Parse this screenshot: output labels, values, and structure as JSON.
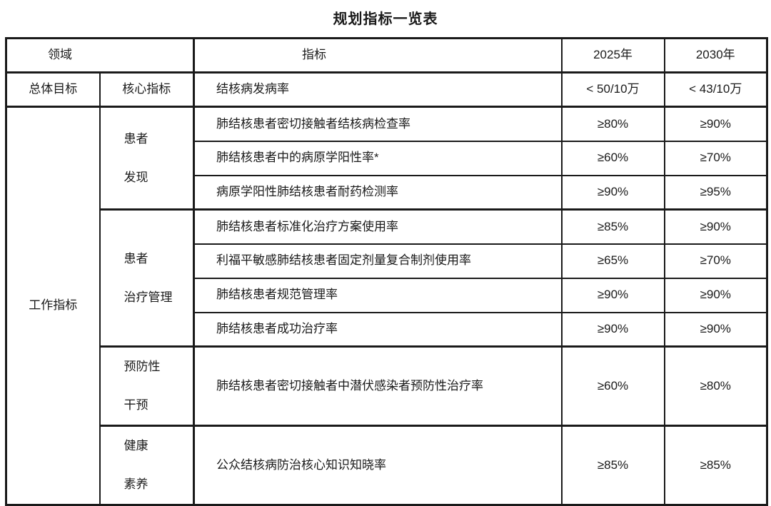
{
  "page": {
    "title": "规划指标一览表"
  },
  "table": {
    "header": {
      "domain": "领域",
      "indicator": "指标",
      "col2025": "2025年",
      "col2030": "2030年"
    },
    "core": {
      "domain": "总体目标",
      "category": "核心指标",
      "indicator": "结核病发病率",
      "v2025": "< 50/10万",
      "v2030": "< 43/10万"
    },
    "work": {
      "domain": "工作指标",
      "discovery": {
        "cat1": "患者",
        "cat2": "发现",
        "r1": {
          "indicator": "肺结核患者密切接触者结核病检查率",
          "v2025": "≥80%",
          "v2030": "≥90%"
        },
        "r2": {
          "indicator": "肺结核患者中的病原学阳性率*",
          "v2025": "≥60%",
          "v2030": "≥70%"
        },
        "r3": {
          "indicator": "病原学阳性肺结核患者耐药检测率",
          "v2025": "≥90%",
          "v2030": "≥95%"
        }
      },
      "treatment": {
        "cat1": "患者",
        "cat2": "治疗管理",
        "r1": {
          "indicator": "肺结核患者标准化治疗方案使用率",
          "v2025": "≥85%",
          "v2030": "≥90%"
        },
        "r2": {
          "indicator": "利福平敏感肺结核患者固定剂量复合制剂使用率",
          "v2025": "≥65%",
          "v2030": "≥70%"
        },
        "r3": {
          "indicator": "肺结核患者规范管理率",
          "v2025": "≥90%",
          "v2030": "≥90%"
        },
        "r4": {
          "indicator": "肺结核患者成功治疗率",
          "v2025": "≥90%",
          "v2030": "≥90%"
        }
      },
      "prevention": {
        "cat1": "预防性",
        "cat2": "干预",
        "indicator": "肺结核患者密切接触者中潜伏感染者预防性治疗率",
        "v2025": "≥60%",
        "v2030": "≥80%"
      },
      "literacy": {
        "cat1": "健康",
        "cat2": "素养",
        "indicator": "公众结核病防治核心知识知晓率",
        "v2025": "≥85%",
        "v2030": "≥85%"
      }
    }
  }
}
